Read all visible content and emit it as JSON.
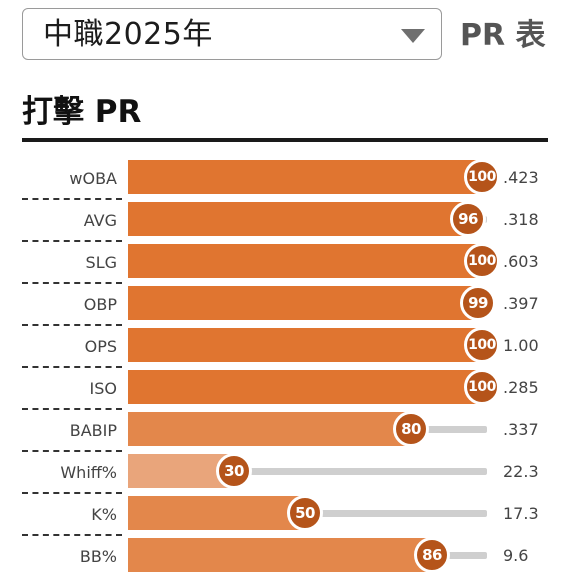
{
  "dropdown": {
    "selected": "中職2025年",
    "caret_icon": "chevron-down-icon"
  },
  "page_label": "PR 表",
  "section": {
    "title": "打擊 PR"
  },
  "colors": {
    "high": "#e07530",
    "mid": "#e3874b",
    "low": "#e9a57b",
    "badge": "#b5541a",
    "track": "#cfcfcf"
  },
  "chart_data": {
    "type": "bar",
    "title": "打擊 PR",
    "xlim": [
      0,
      100
    ],
    "rows": [
      {
        "label": "wOBA",
        "pr": 100,
        "pr_text": "100",
        "value": ".423"
      },
      {
        "label": "AVG",
        "pr": 96,
        "pr_text": "96",
        "value": ".318"
      },
      {
        "label": "SLG",
        "pr": 100,
        "pr_text": "100",
        "value": ".603"
      },
      {
        "label": "OBP",
        "pr": 99,
        "pr_text": "99",
        "value": ".397"
      },
      {
        "label": "OPS",
        "pr": 100,
        "pr_text": "100",
        "value": "1.00"
      },
      {
        "label": "ISO",
        "pr": 100,
        "pr_text": "100",
        "value": ".285"
      },
      {
        "label": "BABIP",
        "pr": 80,
        "pr_text": "80",
        "value": ".337"
      },
      {
        "label": "Whiff%",
        "pr": 30,
        "pr_text": "30",
        "value": "22.3"
      },
      {
        "label": "K%",
        "pr": 50,
        "pr_text": "50",
        "value": "17.3"
      },
      {
        "label": "BB%",
        "pr": 86,
        "pr_text": "86",
        "value": "9.6"
      }
    ]
  }
}
